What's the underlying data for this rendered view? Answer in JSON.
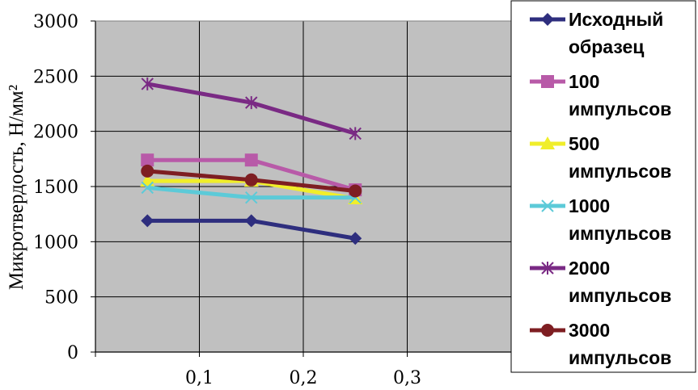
{
  "chart_data": {
    "type": "line",
    "ylabel": "Микротвердость, Н/мм²",
    "xlabel": "",
    "xlim": [
      0,
      0.4
    ],
    "ylim": [
      0,
      3000
    ],
    "x_ticks": [
      0.1,
      0.2,
      0.3
    ],
    "x_tick_labels": [
      "0,1",
      "0,2",
      "0,3"
    ],
    "y_ticks": [
      0,
      500,
      1000,
      1500,
      2000,
      2500,
      3000
    ],
    "y_tick_labels": [
      "0",
      "500",
      "1000",
      "1500",
      "2000",
      "2500",
      "3000"
    ],
    "grid": "vertical and horizontal major gridlines",
    "background": "#c0c0c0",
    "legend_position": "right",
    "x": [
      0.05,
      0.15,
      0.25
    ],
    "series": [
      {
        "name": "Исходный образец",
        "name_lines": [
          "Исходный",
          "образец"
        ],
        "values": [
          1190,
          1190,
          1030
        ],
        "color": "#2e2e7e",
        "marker": "diamond"
      },
      {
        "name": "100 импульсов",
        "name_lines": [
          "100",
          "импульсов"
        ],
        "values": [
          1740,
          1740,
          1470
        ],
        "color": "#b85aa8",
        "marker": "square"
      },
      {
        "name": "500 импульсов",
        "name_lines": [
          "500",
          "импульсов"
        ],
        "values": [
          1550,
          1550,
          1390
        ],
        "color": "#f0ee2a",
        "marker": "triangle"
      },
      {
        "name": "1000 импульсов",
        "name_lines": [
          "1000",
          "импульсов"
        ],
        "values": [
          1490,
          1400,
          1400
        ],
        "color": "#5ccad8",
        "marker": "x"
      },
      {
        "name": "2000 импульсов",
        "name_lines": [
          "2000",
          "импульсов"
        ],
        "values": [
          2430,
          2260,
          1980
        ],
        "color": "#7a2a84",
        "marker": "star"
      },
      {
        "name": "3000 импульсов",
        "name_lines": [
          "3000",
          "импульсов"
        ],
        "values": [
          1640,
          1560,
          1460
        ],
        "color": "#7e1e22",
        "marker": "circle"
      }
    ]
  }
}
